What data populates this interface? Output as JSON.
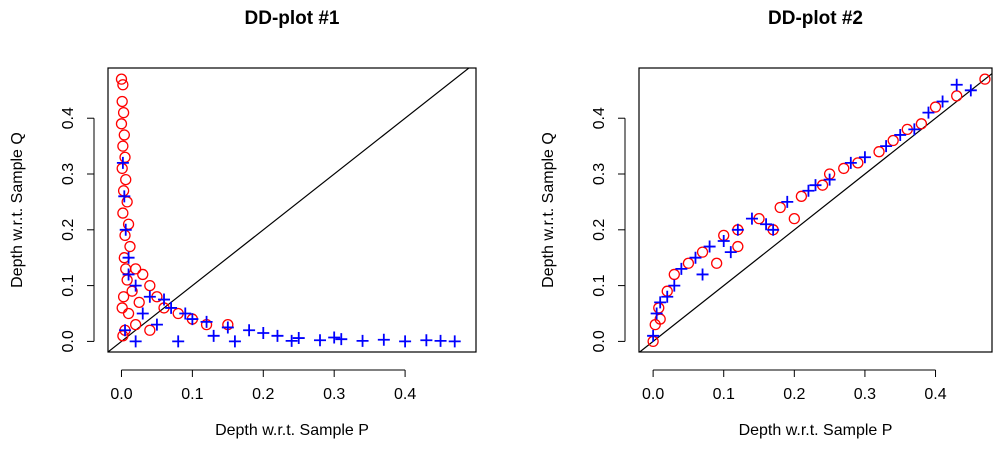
{
  "chart_data": [
    {
      "type": "scatter",
      "title": "DD-plot #1",
      "xlabel": "Depth w.r.t. Sample P",
      "ylabel": "Depth w.r.t. Sample Q",
      "xlim": [
        -0.019,
        0.5
      ],
      "ylim": [
        -0.019,
        0.49
      ],
      "xticks": [
        {
          "value": 0,
          "label": "0.0"
        },
        0.1,
        0.2,
        0.3,
        0.4
      ],
      "yticks": [
        {
          "value": 0,
          "label": "0.0"
        },
        0.1,
        0.2,
        0.3,
        0.4
      ],
      "series": [
        {
          "color": "#ff0000",
          "marker": "circle",
          "x": [
            0,
            0.002,
            0.001,
            0.003,
            0,
            0.004,
            0.002,
            0.005,
            0.001,
            0.006,
            0.003,
            0.008,
            0.002,
            0.01,
            0.005,
            0.012,
            0.004,
            0.02,
            0.03,
            0.008,
            0.04,
            0.015,
            0.05,
            0.025,
            0.06,
            0.01,
            0.08,
            0.1,
            0.12,
            0.15,
            0.02,
            0.005,
            0.002,
            0.04,
            0.001,
            0.003,
            0.006
          ],
          "values": [
            0.47,
            0.46,
            0.43,
            0.41,
            0.39,
            0.37,
            0.35,
            0.33,
            0.31,
            0.29,
            0.27,
            0.25,
            0.23,
            0.21,
            0.19,
            0.17,
            0.15,
            0.13,
            0.12,
            0.11,
            0.1,
            0.09,
            0.08,
            0.07,
            0.06,
            0.05,
            0.05,
            0.04,
            0.03,
            0.03,
            0.03,
            0.02,
            0.01,
            0.02,
            0.06,
            0.08,
            0.13
          ]
        },
        {
          "color": "#0000ff",
          "marker": "plus",
          "x": [
            0.47,
            0.45,
            0.43,
            0.4,
            0.37,
            0.34,
            0.31,
            0.28,
            0.25,
            0.22,
            0.2,
            0.18,
            0.15,
            0.12,
            0.1,
            0.09,
            0.07,
            0.06,
            0.04,
            0.05,
            0.03,
            0.02,
            0.01,
            0.006,
            0.004,
            0.002,
            0.01,
            0.3,
            0.16,
            0.08,
            0.02,
            0.005,
            0.13,
            0.24
          ],
          "values": [
            0,
            0.001,
            0.002,
            0,
            0.003,
            0.001,
            0.004,
            0.002,
            0.006,
            0.01,
            0.015,
            0.02,
            0.025,
            0.035,
            0.04,
            0.05,
            0.06,
            0.075,
            0.08,
            0.03,
            0.05,
            0.1,
            0.15,
            0.2,
            0.26,
            0.32,
            0.12,
            0.007,
            0,
            0,
            0,
            0.02,
            0.01,
            0.001
          ]
        }
      ]
    },
    {
      "type": "scatter",
      "title": "DD-plot #2",
      "xlabel": "Depth w.r.t. Sample P",
      "ylabel": "Depth w.r.t. Sample Q",
      "xlim": [
        -0.02,
        0.48
      ],
      "ylim": [
        -0.019,
        0.49
      ],
      "xticks": [
        {
          "value": 0,
          "label": "0.0"
        },
        0.1,
        0.2,
        0.3,
        0.4
      ],
      "yticks": [
        {
          "value": 0,
          "label": "0.0"
        },
        0.1,
        0.2,
        0.3,
        0.4
      ],
      "series": [
        {
          "color": "#ff0000",
          "marker": "circle",
          "x": [
            0,
            0.003,
            0.008,
            0.02,
            0.03,
            0.05,
            0.07,
            0.1,
            0.12,
            0.15,
            0.17,
            0.18,
            0.21,
            0.24,
            0.27,
            0.29,
            0.32,
            0.34,
            0.36,
            0.38,
            0.4,
            0.43,
            0.47,
            0.09,
            0.12,
            0.25,
            0.2,
            0.01
          ],
          "values": [
            0,
            0.03,
            0.06,
            0.09,
            0.12,
            0.14,
            0.16,
            0.19,
            0.2,
            0.22,
            0.2,
            0.24,
            0.26,
            0.28,
            0.31,
            0.32,
            0.34,
            0.36,
            0.38,
            0.39,
            0.42,
            0.44,
            0.47,
            0.14,
            0.17,
            0.3,
            0.22,
            0.04
          ]
        },
        {
          "color": "#0000ff",
          "marker": "plus",
          "x": [
            0,
            0.005,
            0.01,
            0.02,
            0.03,
            0.04,
            0.06,
            0.08,
            0.1,
            0.12,
            0.14,
            0.16,
            0.17,
            0.19,
            0.22,
            0.25,
            0.28,
            0.3,
            0.33,
            0.35,
            0.37,
            0.39,
            0.41,
            0.43,
            0.45,
            0.07,
            0.11,
            0.23
          ],
          "values": [
            0.01,
            0.05,
            0.07,
            0.08,
            0.1,
            0.13,
            0.15,
            0.17,
            0.18,
            0.2,
            0.22,
            0.21,
            0.2,
            0.25,
            0.27,
            0.29,
            0.32,
            0.33,
            0.35,
            0.37,
            0.38,
            0.41,
            0.43,
            0.46,
            0.45,
            0.12,
            0.16,
            0.28
          ]
        }
      ]
    }
  ]
}
